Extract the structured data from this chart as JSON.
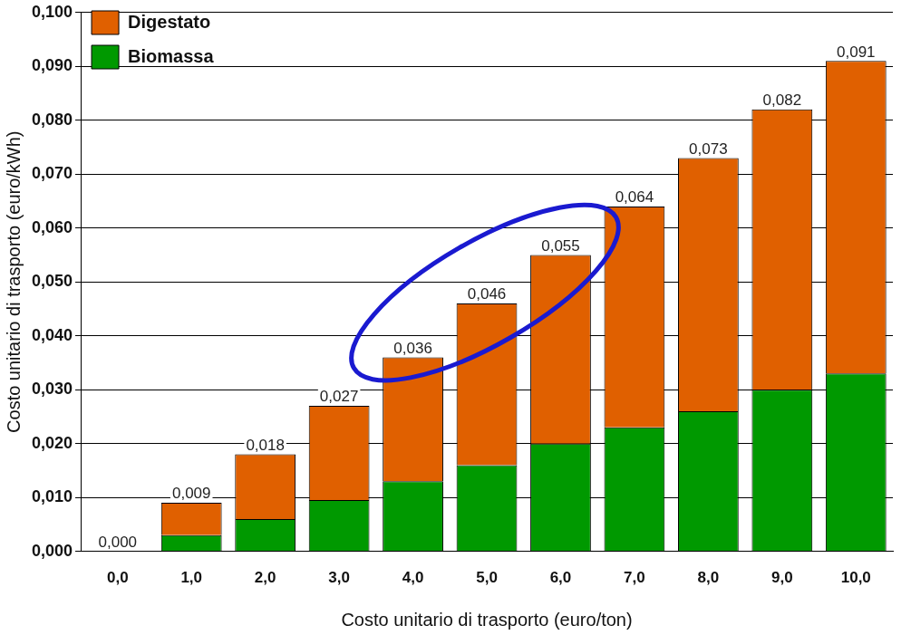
{
  "chart_data": {
    "type": "bar",
    "stacked": true,
    "xlabel": "Costo unitario di trasporto (euro/ton)",
    "ylabel": "Costo unitario di trasporto (euro/kWh)",
    "categories": [
      "0,0",
      "1,0",
      "2,0",
      "3,0",
      "4,0",
      "5,0",
      "6,0",
      "7,0",
      "8,0",
      "9,0",
      "10,0"
    ],
    "series": [
      {
        "name": "Biomassa",
        "color": "#009900",
        "values": [
          0,
          0.003,
          0.006,
          0.0095,
          0.013,
          0.016,
          0.02,
          0.023,
          0.026,
          0.03,
          0.033
        ]
      },
      {
        "name": "Digestato",
        "color": "#e06000",
        "values": [
          0,
          0.006,
          0.012,
          0.0175,
          0.023,
          0.03,
          0.035,
          0.041,
          0.047,
          0.052,
          0.058
        ]
      }
    ],
    "totals": [
      "0,000",
      "0,009",
      "0,018",
      "0,027",
      "0,036",
      "0,046",
      "0,055",
      "0,064",
      "0,073",
      "0,082",
      "0,091"
    ],
    "ylim": [
      0,
      0.1
    ],
    "yticks": [
      {
        "value": 0,
        "label": "0,000"
      },
      {
        "value": 0.01,
        "label": "0,010"
      },
      {
        "value": 0.02,
        "label": "0,020"
      },
      {
        "value": 0.03,
        "label": "0,030"
      },
      {
        "value": 0.04,
        "label": "0,040"
      },
      {
        "value": 0.05,
        "label": "0,050"
      },
      {
        "value": 0.06,
        "label": "0,060"
      },
      {
        "value": 0.07,
        "label": "0,070"
      },
      {
        "value": 0.08,
        "label": "0,080"
      },
      {
        "value": 0.09,
        "label": "0,090"
      },
      {
        "value": 0.1,
        "label": "0,100"
      }
    ],
    "grid": "y",
    "legend": "top left"
  }
}
